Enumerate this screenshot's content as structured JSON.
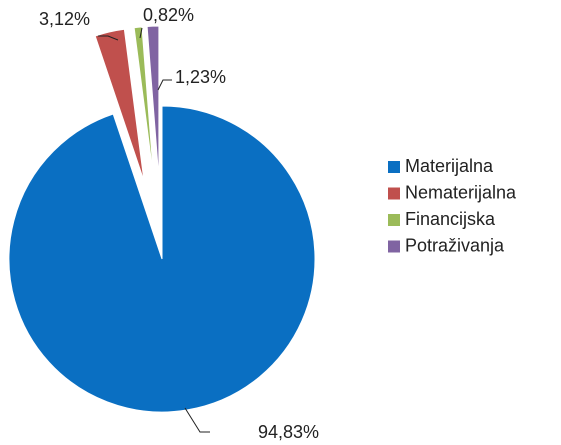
{
  "chart_data": {
    "type": "pie",
    "categories": [
      "Materijalna",
      "Nematerijalna",
      "Financijska",
      "Potraživanja"
    ],
    "values": [
      94.83,
      3.12,
      0.82,
      1.23
    ],
    "value_labels": [
      "94,83%",
      "3,12%",
      "0,82%",
      "1,23%"
    ],
    "colors": [
      "#0a6fc2",
      "#c0504d",
      "#9bbb59",
      "#8064a2"
    ],
    "legend": "right"
  }
}
